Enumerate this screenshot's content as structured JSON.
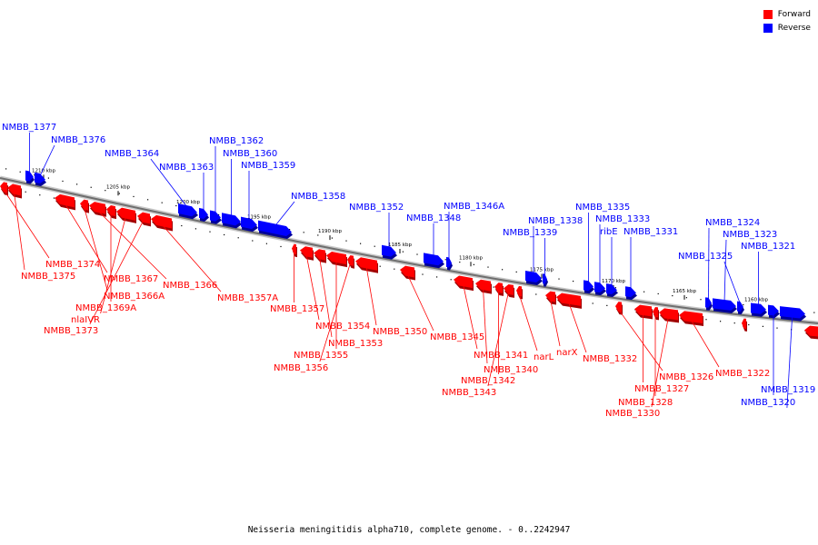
{
  "legend": {
    "forward_label": "Forward",
    "reverse_label": "Reverse",
    "forward_color": "#ff0000",
    "reverse_color": "#0000ff"
  },
  "caption": "Neisseria meningitidis alpha710, complete genome. - 0..2242947",
  "ticks": [
    "1210 kbp",
    "1205 kbp",
    "1200 kbp",
    "1195 kbp",
    "1190 kbp",
    "1185 kbp",
    "1180 kbp",
    "1175 kbp",
    "1170 kbp",
    "1165 kbp",
    "1160 kbp"
  ],
  "genes": [
    {
      "name": "NMBB_1377",
      "strand": "reverse"
    },
    {
      "name": "NMBB_1376",
      "strand": "reverse"
    },
    {
      "name": "NMBB_1364",
      "strand": "reverse"
    },
    {
      "name": "NMBB_1363",
      "strand": "reverse"
    },
    {
      "name": "NMBB_1362",
      "strand": "reverse"
    },
    {
      "name": "NMBB_1360",
      "strand": "reverse"
    },
    {
      "name": "NMBB_1359",
      "strand": "reverse"
    },
    {
      "name": "NMBB_1358",
      "strand": "reverse"
    },
    {
      "name": "NMBB_1352",
      "strand": "reverse"
    },
    {
      "name": "NMBB_1348",
      "strand": "reverse"
    },
    {
      "name": "NMBB_1346A",
      "strand": "reverse"
    },
    {
      "name": "NMBB_1338",
      "strand": "reverse"
    },
    {
      "name": "NMBB_1339",
      "strand": "reverse"
    },
    {
      "name": "NMBB_1335",
      "strand": "reverse"
    },
    {
      "name": "NMBB_1333",
      "strand": "reverse"
    },
    {
      "name": "ribE",
      "strand": "reverse"
    },
    {
      "name": "NMBB_1331",
      "strand": "reverse"
    },
    {
      "name": "NMBB_1324",
      "strand": "reverse"
    },
    {
      "name": "NMBB_1323",
      "strand": "reverse"
    },
    {
      "name": "NMBB_1325",
      "strand": "reverse"
    },
    {
      "name": "NMBB_1321",
      "strand": "reverse"
    },
    {
      "name": "NMBB_1319",
      "strand": "reverse"
    },
    {
      "name": "NMBB_1320",
      "strand": "reverse"
    },
    {
      "name": "NMBB_1374",
      "strand": "forward"
    },
    {
      "name": "NMBB_1375",
      "strand": "forward"
    },
    {
      "name": "NMBB_1367",
      "strand": "forward"
    },
    {
      "name": "NMBB_1366A",
      "strand": "forward"
    },
    {
      "name": "NMBB_1366",
      "strand": "forward"
    },
    {
      "name": "NMBB_1369A",
      "strand": "forward"
    },
    {
      "name": "nlaIVR",
      "strand": "forward"
    },
    {
      "name": "NMBB_1373",
      "strand": "forward"
    },
    {
      "name": "NMBB_1357A",
      "strand": "forward"
    },
    {
      "name": "NMBB_1357",
      "strand": "forward"
    },
    {
      "name": "NMBB_1354",
      "strand": "forward"
    },
    {
      "name": "NMBB_1353",
      "strand": "forward"
    },
    {
      "name": "NMBB_1355",
      "strand": "forward"
    },
    {
      "name": "NMBB_1356",
      "strand": "forward"
    },
    {
      "name": "NMBB_1350",
      "strand": "forward"
    },
    {
      "name": "NMBB_1345",
      "strand": "forward"
    },
    {
      "name": "NMBB_1341",
      "strand": "forward"
    },
    {
      "name": "NMBB_1340",
      "strand": "forward"
    },
    {
      "name": "NMBB_1342",
      "strand": "forward"
    },
    {
      "name": "NMBB_1343",
      "strand": "forward"
    },
    {
      "name": "narL",
      "strand": "forward"
    },
    {
      "name": "narX",
      "strand": "forward"
    },
    {
      "name": "NMBB_1332",
      "strand": "forward"
    },
    {
      "name": "NMBB_1326",
      "strand": "forward"
    },
    {
      "name": "NMBB_1327",
      "strand": "forward"
    },
    {
      "name": "NMBB_1328",
      "strand": "forward"
    },
    {
      "name": "NMBB_1330",
      "strand": "forward"
    },
    {
      "name": "NMBB_1322",
      "strand": "forward"
    }
  ]
}
